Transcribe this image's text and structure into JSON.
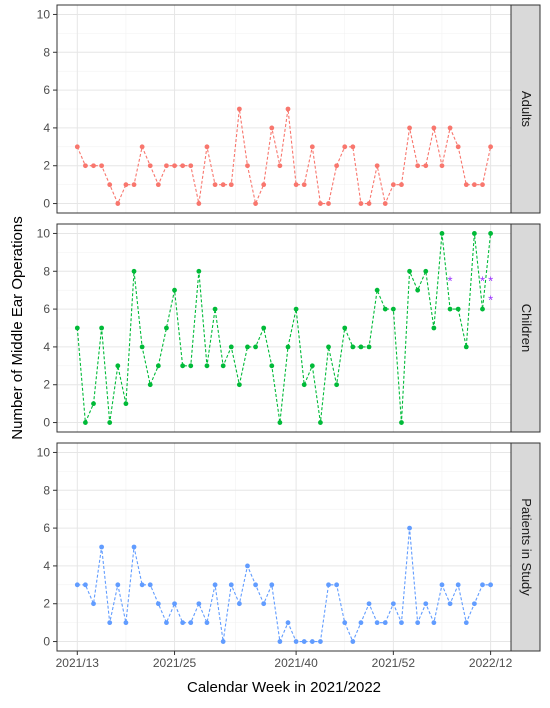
{
  "chart_data": {
    "type": "line",
    "xlabel": "Calendar Week in 2021/2022",
    "ylabel": "Number of Middle Ear Operations",
    "x_tick_labels": [
      "2021/13",
      "2021/25",
      "2021/40",
      "2021/52",
      "2022/12"
    ],
    "x_tick_index": [
      0,
      12,
      27,
      39,
      51
    ],
    "y_ticks": [
      0,
      2,
      4,
      6,
      8,
      10
    ],
    "ylim": [
      -0.5,
      10.5
    ],
    "grid": true,
    "panels": [
      {
        "name": "Adults",
        "color": "#F8766D",
        "values": [
          3,
          2,
          2,
          2,
          1,
          0,
          1,
          1,
          3,
          2,
          1,
          2,
          2,
          2,
          2,
          0,
          3,
          1,
          1,
          1,
          5,
          2,
          0,
          1,
          4,
          2,
          5,
          1,
          1,
          3,
          0,
          0,
          2,
          3,
          3,
          0,
          0,
          2,
          0,
          1,
          1,
          4,
          2,
          2,
          4,
          2,
          4,
          3,
          1,
          1,
          1,
          3
        ]
      },
      {
        "name": "Children",
        "color": "#00BA38",
        "values": [
          5,
          0,
          1,
          5,
          0,
          3,
          1,
          8,
          4,
          2,
          3,
          5,
          7,
          3,
          3,
          8,
          3,
          6,
          3,
          4,
          2,
          4,
          4,
          5,
          3,
          0,
          4,
          6,
          2,
          3,
          0,
          4,
          2,
          5,
          4,
          4,
          4,
          7,
          6,
          6,
          0,
          8,
          7,
          8,
          5,
          10,
          6,
          6,
          4,
          10,
          6,
          10
        ],
        "markers": [
          {
            "index": 46,
            "value": 7.5,
            "symbol": "*",
            "color": "#9B30FF"
          },
          {
            "index": 50,
            "value": 7.5,
            "symbol": "*",
            "color": "#9B30FF"
          },
          {
            "index": 51,
            "value": 7.5,
            "symbol": "*",
            "color": "#9B30FF"
          },
          {
            "index": 51,
            "value": 6.5,
            "symbol": "*",
            "color": "#9B30FF"
          }
        ]
      },
      {
        "name": "Patients in Study",
        "color": "#619CFF",
        "values": [
          3,
          3,
          2,
          5,
          1,
          3,
          1,
          5,
          3,
          3,
          2,
          1,
          2,
          1,
          1,
          2,
          1,
          3,
          0,
          3,
          2,
          4,
          3,
          2,
          3,
          0,
          1,
          0,
          0,
          0,
          0,
          3,
          3,
          1,
          0,
          1,
          2,
          1,
          1,
          2,
          1,
          6,
          1,
          2,
          1,
          3,
          2,
          3,
          1,
          2,
          3,
          3
        ]
      }
    ]
  }
}
